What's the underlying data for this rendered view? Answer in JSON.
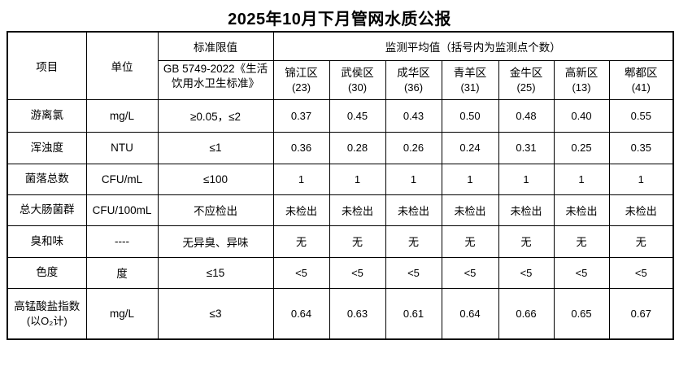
{
  "page": {
    "title": "2025年10月下月管网水质公报"
  },
  "table": {
    "headers": {
      "item": "项目",
      "unit": "单位",
      "standard_limit": "标准限值",
      "standard_ref_line1": "GB 5749-2022",
      "standard_ref_line2": "《生活饮用水卫生标准》",
      "monitoring_avg": "监测平均值（括号内为监测点个数）",
      "districts": [
        {
          "name": "锦江区",
          "count": "(23)"
        },
        {
          "name": "武侯区",
          "count": "(30)"
        },
        {
          "name": "成华区",
          "count": "(36)"
        },
        {
          "name": "青羊区",
          "count": "(31)"
        },
        {
          "name": "金牛区",
          "count": "(25)"
        },
        {
          "name": "高新区",
          "count": "(13)"
        },
        {
          "name": "郫都区",
          "count": "(41)"
        }
      ]
    },
    "rows": [
      {
        "item": "游离氯",
        "unit": "mg/L",
        "limit": "≥0.05，≤2",
        "values": [
          "0.37",
          "0.45",
          "0.43",
          "0.50",
          "0.48",
          "0.40",
          "0.55"
        ]
      },
      {
        "item": "浑浊度",
        "unit": "NTU",
        "limit": "≤1",
        "values": [
          "0.36",
          "0.28",
          "0.26",
          "0.24",
          "0.31",
          "0.25",
          "0.35"
        ]
      },
      {
        "item": "菌落总数",
        "unit": "CFU/mL",
        "limit": "≤100",
        "values": [
          "1",
          "1",
          "1",
          "1",
          "1",
          "1",
          "1"
        ]
      },
      {
        "item": "总大肠菌群",
        "unit": "CFU/100mL",
        "limit": "不应检出",
        "values": [
          "未检出",
          "未检出",
          "未检出",
          "未检出",
          "未检出",
          "未检出",
          "未检出"
        ]
      },
      {
        "item": "臭和味",
        "unit": "----",
        "limit": "无异臭、异味",
        "values": [
          "无",
          "无",
          "无",
          "无",
          "无",
          "无",
          "无"
        ]
      },
      {
        "item": "色度",
        "unit": "度",
        "limit": "≤15",
        "values": [
          "<5",
          "<5",
          "<5",
          "<5",
          "<5",
          "<5",
          "<5"
        ]
      },
      {
        "item": "高锰酸盐指数",
        "item_sub": "(以O₂计)",
        "unit": "mg/L",
        "limit": "≤3",
        "values": [
          "0.64",
          "0.63",
          "0.61",
          "0.64",
          "0.66",
          "0.65",
          "0.67"
        ]
      }
    ]
  }
}
